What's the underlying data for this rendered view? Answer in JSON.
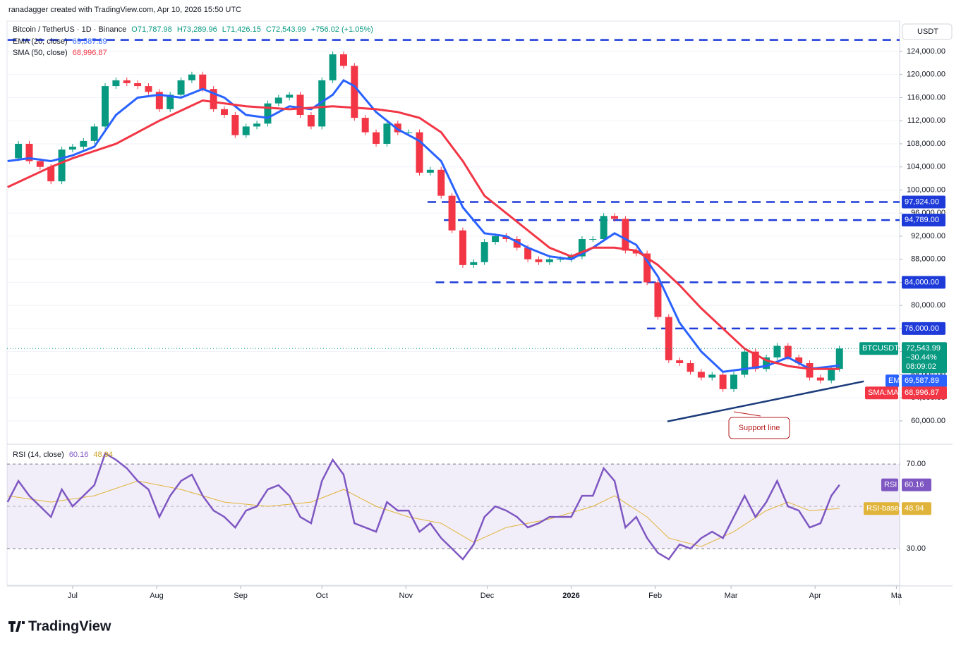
{
  "header": {
    "attribution": "ranadagger created with TradingView.com, Apr 10, 2026 15:50 UTC",
    "symbol": "Bitcoin / TetherUS · 1D · Binance",
    "open": "O71,787.98",
    "high": "H73,289.96",
    "low": "L71,426.15",
    "close": "C72,543.99",
    "change": "+756.02 (+1.05%)"
  },
  "logo": "TradingView",
  "chart_data": [
    {
      "type": "candlestick",
      "currency": "USDT",
      "xlim": [
        -24.2,
        305.2
      ],
      "ylim": [
        56200,
        129250
      ],
      "yticks": [
        {
          "value": 60000,
          "label": "60,000.00"
        },
        {
          "value": 64000,
          "label": "64,000.00"
        },
        {
          "value": 68000,
          "label": "68,000.00"
        },
        {
          "value": 72000,
          "label": "72,000.00"
        },
        {
          "value": 76000,
          "label": "76,000.00"
        },
        {
          "value": 80000,
          "label": "80,000.00"
        },
        {
          "value": 84000,
          "label": "84,000.00"
        },
        {
          "value": 88000,
          "label": "88,000.00"
        },
        {
          "value": 92000,
          "label": "92,000.00"
        },
        {
          "value": 96000,
          "label": "96,000.00"
        },
        {
          "value": 100000,
          "label": "100,000.00"
        },
        {
          "value": 104000,
          "label": "104,000.00"
        },
        {
          "value": 108000,
          "label": "108,000.00"
        },
        {
          "value": 112000,
          "label": "112,000.00"
        },
        {
          "value": 116000,
          "label": "116,000.00"
        },
        {
          "value": 120000,
          "label": "120,000.00"
        },
        {
          "value": 124000,
          "label": "124,000.00"
        }
      ],
      "x": [
        -24,
        -20,
        -16,
        -12,
        -8,
        -4,
        0,
        4,
        8,
        12,
        16,
        20,
        24,
        28,
        32,
        36,
        40,
        44,
        48,
        52,
        56,
        60,
        64,
        68,
        72,
        76,
        80,
        84,
        88,
        92,
        96,
        100,
        104,
        108,
        112,
        116,
        120,
        124,
        128,
        132,
        136,
        140,
        144,
        148,
        152,
        156,
        160,
        164,
        168,
        172,
        176,
        180,
        184,
        188,
        192,
        196,
        200,
        204,
        208,
        212,
        216,
        220,
        224,
        228,
        232,
        236,
        240,
        244,
        248,
        252,
        256,
        260,
        264,
        268,
        272,
        276,
        280,
        283
      ],
      "series": [
        {
          "name": "BTCUSDT",
          "color_up": "#089981",
          "color_down": "#f23645",
          "values": [
            105500,
            108000,
            105000,
            104000,
            101500,
            107000,
            107500,
            108500,
            111000,
            118000,
            119000,
            118500,
            118000,
            117000,
            114000,
            116500,
            119000,
            120000,
            117500,
            114000,
            113000,
            109500,
            111000,
            111500,
            115000,
            116000,
            116500,
            113000,
            111000,
            119000,
            123500,
            121500,
            112500,
            110000,
            108000,
            111500,
            110000,
            110000,
            103000,
            103500,
            99000,
            93000,
            87000,
            87500,
            91000,
            92000,
            91500,
            90000,
            88000,
            87500,
            88000,
            88000,
            88500,
            91500,
            91500,
            95500,
            95000,
            89500,
            89000,
            84000,
            78000,
            70500,
            70000,
            68500,
            67500,
            68000,
            65500,
            68000,
            72000,
            69000,
            71000,
            73000,
            71000,
            70000,
            67500,
            67000,
            69000,
            72543.99
          ],
          "last_label": "72,543.99",
          "change_label": "−30.44%",
          "countdown": "08:09:02"
        },
        {
          "name": "EMA",
          "legend": "EMA (20, close)",
          "color": "#2962ff",
          "last_label": "69,587.89",
          "x": [
            -24,
            -16,
            -8,
            0,
            8,
            16,
            24,
            32,
            40,
            48,
            56,
            64,
            72,
            80,
            88,
            96,
            100,
            104,
            112,
            120,
            128,
            136,
            144,
            152,
            160,
            168,
            176,
            184,
            192,
            200,
            208,
            216,
            224,
            232,
            240,
            248,
            256,
            264,
            272,
            283
          ],
          "values": [
            105000,
            105500,
            105000,
            106000,
            107500,
            113000,
            116000,
            116500,
            116000,
            117500,
            116000,
            113000,
            112500,
            114500,
            114000,
            116500,
            119000,
            118000,
            113500,
            110500,
            108500,
            105000,
            97000,
            92500,
            92000,
            90000,
            88500,
            88000,
            90000,
            92500,
            90500,
            85000,
            77000,
            72000,
            68500,
            69000,
            69500,
            71000,
            69000,
            69587.89
          ]
        },
        {
          "name": "SMA:MA",
          "legend": "SMA (50, close)",
          "color": "#f23645",
          "last_label": "68,996.87",
          "x": [
            -24,
            -8,
            0,
            16,
            32,
            48,
            64,
            80,
            96,
            112,
            120,
            128,
            136,
            144,
            152,
            160,
            168,
            176,
            184,
            192,
            200,
            208,
            216,
            224,
            232,
            240,
            248,
            256,
            264,
            272,
            283
          ],
          "values": [
            100500,
            104000,
            105500,
            108000,
            112000,
            115500,
            114500,
            114000,
            114500,
            114000,
            113500,
            112500,
            110000,
            105000,
            99000,
            96000,
            93000,
            90000,
            88500,
            90000,
            90000,
            89500,
            87000,
            83500,
            79500,
            76000,
            72500,
            70500,
            69500,
            69000,
            68996.87
          ]
        }
      ],
      "levels": [
        {
          "value": 126000,
          "from": -24
        },
        {
          "value": 97924,
          "label": "97,924.00",
          "from": 131
        },
        {
          "value": 94789,
          "label": "94,789.00",
          "from": 137
        },
        {
          "value": 84000,
          "label": "84,000.00",
          "from": 134
        },
        {
          "value": 76000,
          "label": "76,000.00",
          "from": 212
        }
      ],
      "support_line": {
        "label": "Support line",
        "x": [
          219.5,
          292
        ],
        "values": [
          59900,
          66850
        ]
      }
    },
    {
      "type": "line",
      "legend": "RSI (14, close)",
      "xlim": [
        -24.2,
        305.2
      ],
      "ylim": [
        12.7,
        78.7
      ],
      "yticks": [
        {
          "value": 70,
          "label": "70.00"
        },
        {
          "value": 30,
          "label": "30.00"
        }
      ],
      "midline": 50,
      "xticks": [
        {
          "value": 0,
          "label": "Jul"
        },
        {
          "value": 31,
          "label": "Aug"
        },
        {
          "value": 62,
          "label": "Sep"
        },
        {
          "value": 92,
          "label": "Oct"
        },
        {
          "value": 123,
          "label": "Nov"
        },
        {
          "value": 153,
          "label": "Dec"
        },
        {
          "value": 184,
          "label": "2026"
        },
        {
          "value": 215,
          "label": "Feb"
        },
        {
          "value": 243,
          "label": "Mar"
        },
        {
          "value": 274,
          "label": "Apr"
        },
        {
          "value": 304,
          "label": "Ma"
        }
      ],
      "series": [
        {
          "name": "RSI",
          "color": "#7e57c2",
          "last_label": "60.16",
          "x": [
            -24,
            -20,
            -16,
            -12,
            -8,
            -4,
            0,
            4,
            8,
            12,
            16,
            20,
            24,
            28,
            32,
            36,
            40,
            44,
            48,
            52,
            56,
            60,
            64,
            68,
            72,
            76,
            80,
            84,
            88,
            92,
            96,
            100,
            104,
            108,
            112,
            116,
            120,
            124,
            128,
            132,
            136,
            140,
            144,
            148,
            152,
            156,
            160,
            164,
            168,
            172,
            176,
            180,
            184,
            188,
            192,
            196,
            200,
            204,
            208,
            212,
            216,
            220,
            224,
            228,
            232,
            236,
            240,
            244,
            248,
            252,
            256,
            260,
            264,
            268,
            272,
            276,
            280,
            283
          ],
          "values": [
            52,
            62,
            55,
            50,
            45,
            58,
            50,
            55,
            60,
            75,
            72,
            68,
            62,
            58,
            45,
            55,
            62,
            65,
            55,
            48,
            45,
            40,
            48,
            50,
            58,
            60,
            55,
            45,
            42,
            62,
            72,
            65,
            42,
            40,
            38,
            52,
            48,
            48,
            38,
            42,
            35,
            30,
            25,
            32,
            45,
            50,
            48,
            45,
            40,
            42,
            45,
            45,
            45,
            55,
            55,
            68,
            62,
            40,
            45,
            35,
            28,
            25,
            32,
            30,
            35,
            38,
            35,
            45,
            55,
            45,
            52,
            62,
            50,
            48,
            40,
            42,
            55,
            60.16
          ]
        },
        {
          "name": "RSI-based MA",
          "color": "#e0b43a",
          "last_label": "48.94",
          "x": [
            -24,
            -8,
            8,
            24,
            40,
            56,
            72,
            88,
            100,
            112,
            124,
            136,
            148,
            160,
            176,
            192,
            200,
            212,
            220,
            232,
            244,
            256,
            264,
            272,
            283
          ],
          "values": [
            55,
            52,
            55,
            62,
            58,
            52,
            50,
            52,
            58,
            50,
            45,
            42,
            33,
            40,
            44,
            50,
            55,
            45,
            35,
            31,
            38,
            48,
            52,
            48,
            48.94
          ]
        }
      ]
    }
  ]
}
